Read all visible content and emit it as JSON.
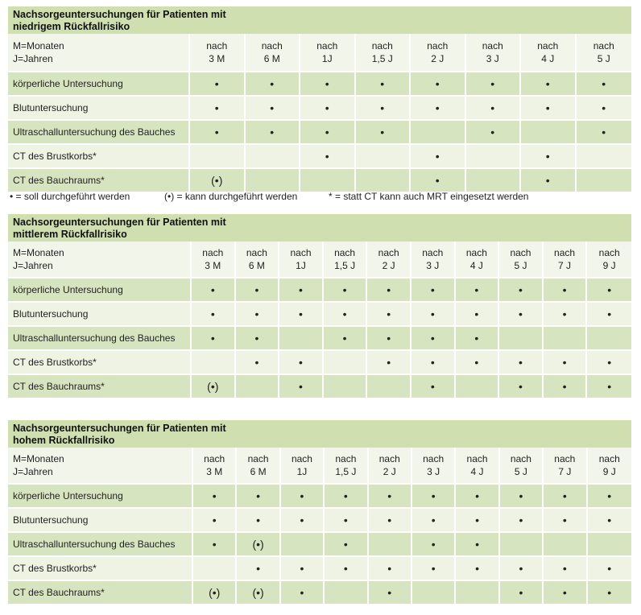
{
  "tables": [
    {
      "title_line1": "Nachsorgeuntersuchungen für Patienten mit",
      "title_line2": "niedrigem Rückfallrisiko",
      "header_label_line1": "M=Monaten",
      "header_label_line2": "J=Jahren",
      "columns": [
        {
          "top": "nach",
          "bottom": "3 M"
        },
        {
          "top": "nach",
          "bottom": "6 M"
        },
        {
          "top": "nach",
          "bottom": "1J"
        },
        {
          "top": "nach",
          "bottom": "1,5 J"
        },
        {
          "top": "nach",
          "bottom": "2 J"
        },
        {
          "top": "nach",
          "bottom": "3 J"
        },
        {
          "top": "nach",
          "bottom": "4 J"
        },
        {
          "top": "nach",
          "bottom": "5 J"
        }
      ],
      "rows": [
        {
          "label": "körperliche Untersuchung",
          "cells": [
            "•",
            "•",
            "•",
            "•",
            "•",
            "•",
            "•",
            "•"
          ]
        },
        {
          "label": "Blutuntersuchung",
          "cells": [
            "•",
            "•",
            "•",
            "•",
            "•",
            "•",
            "•",
            "•"
          ]
        },
        {
          "label": "Ultraschalluntersuchung des Bauches",
          "cells": [
            "•",
            "•",
            "•",
            "•",
            "",
            "•",
            "",
            "•"
          ]
        },
        {
          "label": "CT des Brustkorbs*",
          "cells": [
            "",
            "",
            "•",
            "",
            "•",
            "",
            "•",
            ""
          ]
        },
        {
          "label": "CT des Bauchraums*",
          "cells": [
            "(•)",
            "",
            "",
            "",
            "•",
            "",
            "•",
            ""
          ]
        }
      ]
    },
    {
      "title_line1": "Nachsorgeuntersuchungen für Patienten mit",
      "title_line2": "mittlerem Rückfallrisiko",
      "header_label_line1": "M=Monaten",
      "header_label_line2": "J=Jahren",
      "columns": [
        {
          "top": "nach",
          "bottom": "3 M"
        },
        {
          "top": "nach",
          "bottom": "6 M"
        },
        {
          "top": "nach",
          "bottom": "1J"
        },
        {
          "top": "nach",
          "bottom": "1,5 J"
        },
        {
          "top": "nach",
          "bottom": "2 J"
        },
        {
          "top": "nach",
          "bottom": "3 J"
        },
        {
          "top": "nach",
          "bottom": "4 J"
        },
        {
          "top": "nach",
          "bottom": "5 J"
        },
        {
          "top": "nach",
          "bottom": "7 J"
        },
        {
          "top": "nach",
          "bottom": "9 J"
        }
      ],
      "rows": [
        {
          "label": "körperliche Untersuchung",
          "cells": [
            "•",
            "•",
            "•",
            "•",
            "•",
            "•",
            "•",
            "•",
            "•",
            "•"
          ]
        },
        {
          "label": "Blutuntersuchung",
          "cells": [
            "•",
            "•",
            "•",
            "•",
            "•",
            "•",
            "•",
            "•",
            "•",
            "•"
          ]
        },
        {
          "label": "Ultraschalluntersuchung des Bauches",
          "cells": [
            "•",
            "•",
            "",
            "•",
            "•",
            "•",
            "•",
            "",
            "",
            ""
          ]
        },
        {
          "label": "CT des Brustkorbs*",
          "cells": [
            "",
            "•",
            "•",
            "",
            "•",
            "•",
            "•",
            "•",
            "•",
            "•"
          ]
        },
        {
          "label": "CT des Bauchraums*",
          "cells": [
            "(•)",
            "",
            "•",
            "",
            "",
            "•",
            "",
            "•",
            "•",
            "•"
          ]
        }
      ]
    },
    {
      "title_line1": "Nachsorgeuntersuchungen für Patienten mit",
      "title_line2": "hohem Rückfallrisiko",
      "header_label_line1": "M=Monaten",
      "header_label_line2": "J=Jahren",
      "columns": [
        {
          "top": "nach",
          "bottom": "3 M"
        },
        {
          "top": "nach",
          "bottom": "6 M"
        },
        {
          "top": "nach",
          "bottom": "1J"
        },
        {
          "top": "nach",
          "bottom": "1,5 J"
        },
        {
          "top": "nach",
          "bottom": "2 J"
        },
        {
          "top": "nach",
          "bottom": "3 J"
        },
        {
          "top": "nach",
          "bottom": "4 J"
        },
        {
          "top": "nach",
          "bottom": "5 J"
        },
        {
          "top": "nach",
          "bottom": "7 J"
        },
        {
          "top": "nach",
          "bottom": "9 J"
        }
      ],
      "rows": [
        {
          "label": "körperliche Untersuchung",
          "cells": [
            "•",
            "•",
            "•",
            "•",
            "•",
            "•",
            "•",
            "•",
            "•",
            "•"
          ]
        },
        {
          "label": "Blutuntersuchung",
          "cells": [
            "•",
            "•",
            "•",
            "•",
            "•",
            "•",
            "•",
            "•",
            "•",
            "•"
          ]
        },
        {
          "label": "Ultraschalluntersuchung des Bauches",
          "cells": [
            "•",
            "(•)",
            "",
            "•",
            "",
            "•",
            "•",
            "",
            "",
            ""
          ]
        },
        {
          "label": "CT des Brustkorbs*",
          "cells": [
            "",
            "•",
            "•",
            "•",
            "•",
            "•",
            "•",
            "•",
            "•",
            "•"
          ]
        },
        {
          "label": "CT des Bauchraums*",
          "cells": [
            "(•)",
            "(•)",
            "•",
            "",
            "•",
            "",
            "",
            "•",
            "•",
            "•"
          ]
        }
      ]
    }
  ],
  "legend": {
    "soll": "• = soll durchgeführt werden",
    "kann": "(•) = kann durchgeführt werden",
    "mrt": "* = statt CT kann auch MRT eingesetzt werden"
  },
  "colors": {
    "title_bg": "#cfdfb0",
    "row_dark": "#d7e4c0",
    "row_light": "#eef3e3",
    "header_bg": "#f2f5ea"
  }
}
